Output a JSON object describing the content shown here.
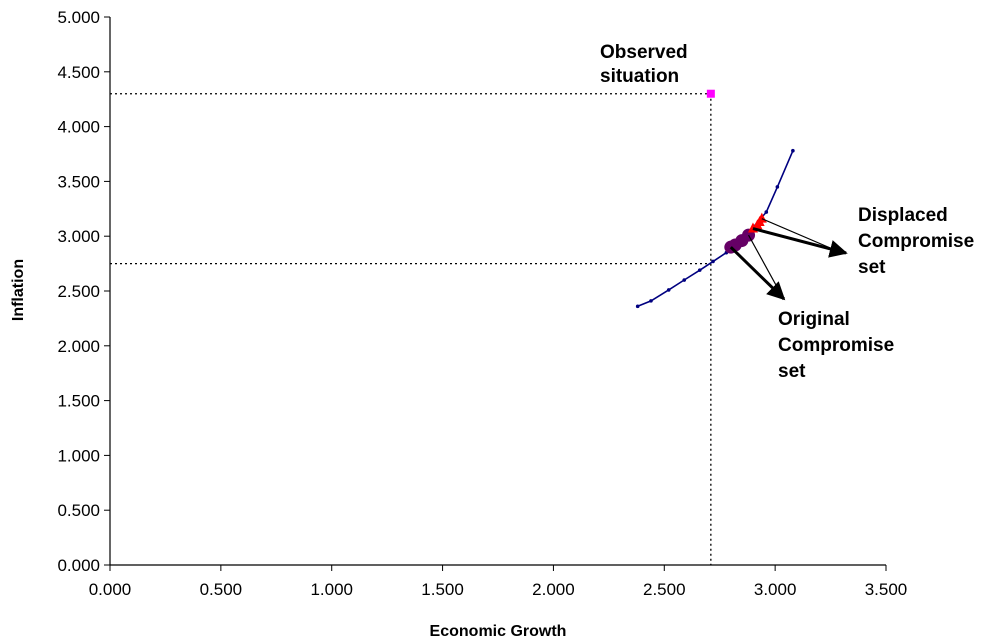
{
  "chart_data": {
    "type": "scatter",
    "xlabel": "Economic Growth",
    "ylabel": "Inflation",
    "xlim": [
      0,
      3.5
    ],
    "ylim": [
      0,
      5
    ],
    "x_ticks": [
      "0.000",
      "0.500",
      "1.000",
      "1.500",
      "2.000",
      "2.500",
      "3.000",
      "3.500"
    ],
    "y_ticks": [
      "0.000",
      "0.500",
      "1.000",
      "1.500",
      "2.000",
      "2.500",
      "3.000",
      "3.500",
      "4.000",
      "4.500",
      "5.000"
    ],
    "grid": false,
    "legend": "none",
    "series": [
      {
        "kind": "line",
        "color": "#000080",
        "points": [
          [
            2.38,
            2.36
          ],
          [
            2.44,
            2.41
          ],
          [
            2.52,
            2.51
          ],
          [
            2.59,
            2.6
          ],
          [
            2.66,
            2.69
          ],
          [
            2.72,
            2.77
          ],
          [
            2.78,
            2.85
          ],
          [
            2.84,
            2.96
          ],
          [
            2.9,
            3.08
          ],
          [
            2.96,
            3.22
          ],
          [
            3.01,
            3.45
          ],
          [
            3.08,
            3.78
          ]
        ]
      },
      {
        "kind": "marker",
        "color": "#FF00FF",
        "shape": "square",
        "points": [
          [
            2.71,
            4.3
          ]
        ]
      },
      {
        "kind": "marker",
        "color": "#660066",
        "shape": "circle",
        "points": [
          [
            2.8,
            2.9
          ],
          [
            2.82,
            2.92
          ],
          [
            2.85,
            2.96
          ],
          [
            2.88,
            3.01
          ]
        ]
      },
      {
        "kind": "marker",
        "color": "#FF0000",
        "shape": "triangle",
        "points": [
          [
            2.9,
            3.07
          ],
          [
            2.92,
            3.1
          ],
          [
            2.93,
            3.13
          ],
          [
            2.94,
            3.16
          ]
        ]
      }
    ],
    "reference_point": {
      "x": 2.71,
      "y_observed": 4.3,
      "y_level": 2.75
    },
    "annotations": [
      {
        "text": [
          "Observed",
          "situation"
        ]
      },
      {
        "text": [
          "Displaced",
          "Compromise",
          "set"
        ]
      },
      {
        "text": [
          "Original",
          "Compromise",
          "set"
        ]
      }
    ]
  }
}
